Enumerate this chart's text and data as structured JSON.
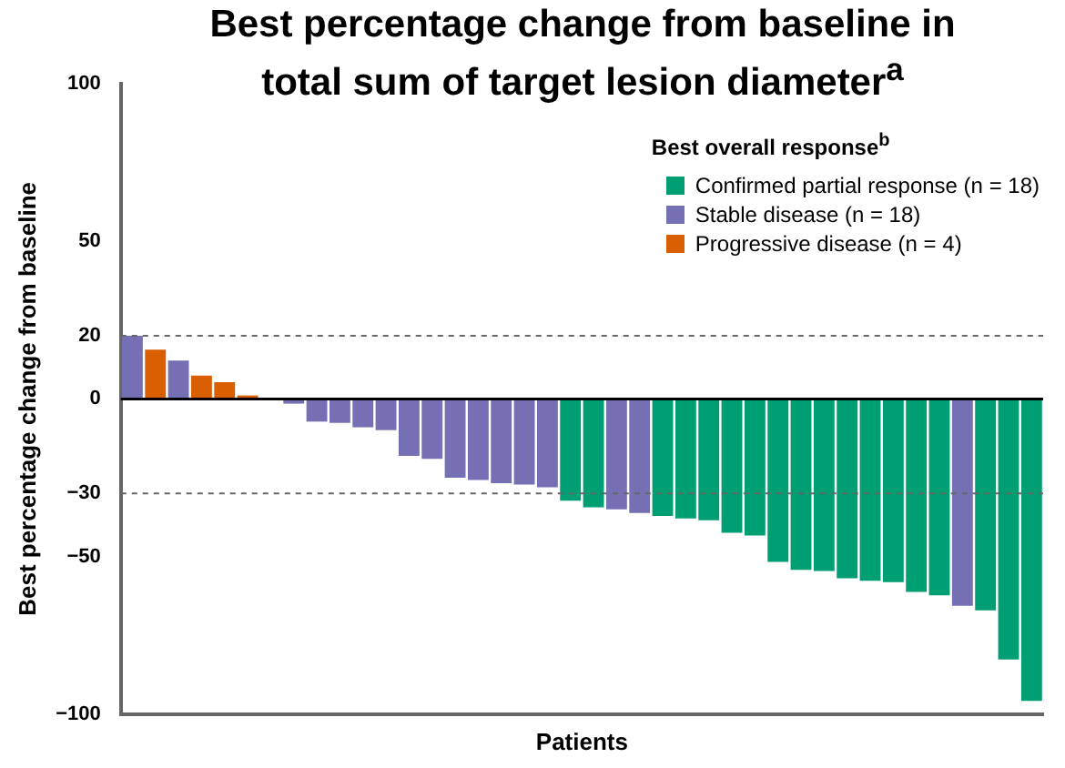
{
  "chart_data": {
    "type": "bar",
    "title": "Best percentage change from baseline in total sum of target lesion diameter$^{a}$",
    "xlabel": "Patients",
    "ylabel": "Best percentage change from baseline",
    "legend_title": "Best overall response$^{b}$",
    "legend": "top right",
    "categories": [
      null,
      null,
      null,
      null,
      null,
      null,
      null,
      null,
      null,
      null,
      null,
      null,
      null,
      null,
      null,
      null,
      null,
      null,
      null,
      null,
      null,
      null,
      null,
      null,
      null,
      null,
      null,
      null,
      null,
      null,
      null,
      null,
      null,
      null,
      null,
      null,
      null,
      null,
      null,
      null
    ],
    "series": [
      {
        "name": "Confirmed partial response (n = 18)",
        "color": "#009e73",
        "values": [
          null,
          null,
          null,
          null,
          null,
          null,
          null,
          null,
          null,
          null,
          null,
          null,
          null,
          null,
          null,
          null,
          null,
          null,
          null,
          -32.3,
          -34.4,
          null,
          null,
          -37.1,
          -37.9,
          -38.5,
          -42.5,
          -43.3,
          -51.7,
          -54.2,
          -54.6,
          -56.9,
          -57.7,
          -58.1,
          -61.2,
          -62.3,
          null,
          -67.1,
          -82.7,
          -95.8
        ]
      },
      {
        "name": "Stable disease (n = 18)",
        "color": "#7570b3",
        "values": [
          20,
          null,
          12.2,
          null,
          null,
          null,
          0,
          -1.5,
          -7.2,
          -7.6,
          -9,
          -9.9,
          -18.1,
          -19,
          -25,
          -25.7,
          -26.7,
          -27.2,
          -28,
          null,
          null,
          -35,
          -36.2,
          null,
          null,
          null,
          null,
          null,
          null,
          null,
          null,
          null,
          null,
          null,
          null,
          null,
          -65.6,
          null,
          null,
          null
        ]
      },
      {
        "name": "Progressive disease (n = 4)",
        "color": "#d95f02",
        "values": [
          null,
          15.6,
          null,
          7.4,
          5.3,
          1.1,
          null,
          null,
          null,
          null,
          null,
          null,
          null,
          null,
          null,
          null,
          null,
          null,
          null,
          null,
          null,
          null,
          null,
          null,
          null,
          null,
          null,
          null,
          null,
          null,
          null,
          null,
          null,
          null,
          null,
          null,
          null,
          null,
          null,
          null
        ]
      }
    ],
    "ylim": [
      -100,
      100
    ],
    "yticks": [
      100,
      50,
      20,
      0,
      {
        "value": -30,
        "label": "−30"
      },
      {
        "value": -50,
        "label": "−50"
      },
      {
        "value": -100,
        "label": "−100"
      }
    ],
    "ref_lines": [
      {
        "axis": "y",
        "value": 20,
        "line_style": "dashed"
      },
      {
        "axis": "y",
        "value": -30,
        "line_style": "dashed"
      }
    ],
    "grid": false
  }
}
